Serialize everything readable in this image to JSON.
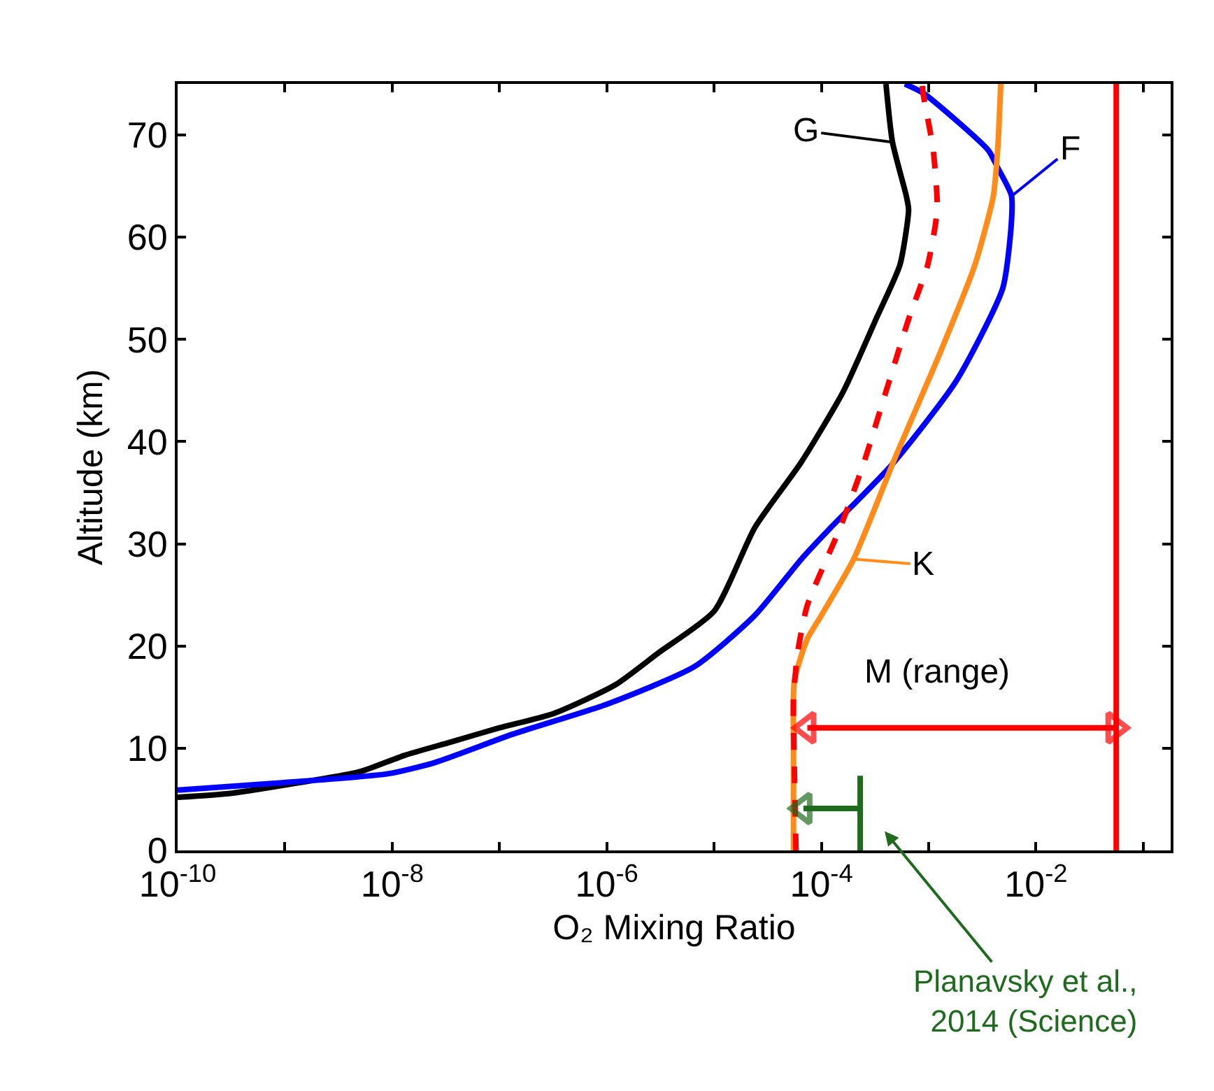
{
  "chart_data": {
    "type": "line",
    "xlabel": "O₂ Mixing Ratio",
    "ylabel": "Altitude (km)",
    "log": "x",
    "marker": "none",
    "xlim": [
      1e-10,
      0.18
    ],
    "ylim": [
      0,
      75
    ],
    "xticks": [
      {
        "value": 1e-10,
        "label": "10$^{-10}$"
      },
      {
        "value": 1e-09,
        "label": null
      },
      {
        "value": 1e-08,
        "label": "10$^{-8}$"
      },
      {
        "value": 1e-07,
        "label": null
      },
      {
        "value": 1e-06,
        "label": "10$^{-6}$"
      },
      {
        "value": 1e-05,
        "label": null
      },
      {
        "value": 0.0001,
        "label": "10$^{-4}$"
      },
      {
        "value": 0.001,
        "label": null
      },
      {
        "value": 0.01,
        "label": "10$^{-2}$"
      },
      {
        "value": 0.1,
        "label": null
      }
    ],
    "yticks": [
      0,
      10,
      20,
      30,
      40,
      50,
      60,
      70
    ],
    "series": [
      {
        "color": "#000000",
        "line_style": "solid",
        "x": [
          1e-10,
          3.2e-10,
          1.3e-09,
          5e-09,
          1.3e-08,
          3.5e-08,
          1e-07,
          3.2e-07,
          1.2e-06,
          3e-06,
          1e-05,
          2.4e-05,
          6.5e-05,
          0.00016,
          0.00033,
          0.00054,
          0.00065,
          0.00062,
          0.00046,
          0.0004
        ],
        "values": [
          5.2,
          5.6,
          6.6,
          7.7,
          9.3,
          10.6,
          12.0,
          13.4,
          16.2,
          19.3,
          23.4,
          31.6,
          38,
          44.9,
          52.2,
          57.3,
          62.7,
          64,
          69.3,
          75
        ]
      },
      {
        "color": "#0000ff",
        "line_style": "solid",
        "x": [
          1e-10,
          8.9e-10,
          9.1e-09,
          2.5e-08,
          1.35e-07,
          1e-06,
          6.6e-06,
          2.4e-05,
          6.5e-05,
          0.00012,
          0.00045,
          0.0018,
          0.0049,
          0.0059,
          0.0059,
          0.0044,
          0.0036,
          0.00089,
          0.0006
        ],
        "values": [
          5.9,
          6.6,
          7.5,
          8.6,
          11.4,
          14.3,
          18,
          23,
          28.5,
          31.5,
          37.7,
          45.9,
          55,
          61.4,
          64.1,
          66.8,
          68.5,
          74.1,
          75
        ]
      },
      {
        "color": "#ff8c1a",
        "line_style": "solid",
        "x": [
          5.5e-05,
          5.5e-05,
          5.6e-05,
          7.4e-05,
          0.0001,
          0.0002,
          0.00049,
          0.0012,
          0.0027,
          0.004,
          0.0044,
          0.0047
        ],
        "values": [
          0,
          10.3,
          16.6,
          20.7,
          23,
          28.5,
          38.5,
          48,
          57.3,
          64,
          68.6,
          75
        ]
      },
      {
        "color": "#ff0000",
        "line_style": "dashed",
        "x": [
          5.8e-05,
          5.6e-05,
          5.5e-05,
          6e-05,
          7.4e-05,
          0.00015,
          0.00025,
          0.0004,
          0.00066,
          0.00098,
          0.0012,
          0.0011,
          0.00089,
          0.00087
        ],
        "values": [
          0,
          7.9,
          14.8,
          19.3,
          24,
          31.6,
          38,
          44.9,
          52.2,
          57.3,
          62.7,
          68.6,
          74,
          75
        ]
      },
      {
        "color": "#ff0000",
        "line_style": "solid",
        "x": [
          0.056,
          0.056
        ],
        "values": [
          0,
          75
        ]
      },
      {
        "color": "#1e6b1e",
        "line_style": "solid",
        "x": [
          0.00023,
          0.00023
        ],
        "values": [
          0,
          7.3
        ]
      },
      {
        "color": "#1e6b1e",
        "line_style": "solid",
        "marker": "triangle",
        "x": [
          0.00023,
          6.8e-05
        ],
        "values": [
          4.1,
          4.1
        ]
      },
      {
        "color": "#ff0000",
        "line_style": "solid",
        "marker": "triangle",
        "x": [
          7.4e-05,
          0.054
        ],
        "values": [
          12,
          12
        ]
      }
    ],
    "annotations": [
      {
        "text": "G",
        "x": 0.00046,
        "y": 69.3
      },
      {
        "text": "F",
        "x": 0.0059,
        "y": 64
      },
      {
        "text": "K",
        "x": 0.0002,
        "y": 28.5
      },
      "M (range)",
      "Planavsky et al.,\n2014 (Science)"
    ]
  }
}
